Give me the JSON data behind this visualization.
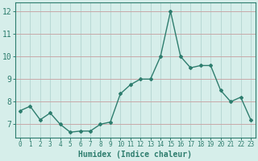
{
  "x": [
    0,
    1,
    2,
    3,
    4,
    5,
    6,
    7,
    8,
    9,
    10,
    11,
    12,
    13,
    14,
    15,
    16,
    17,
    18,
    19,
    20,
    21,
    22,
    23
  ],
  "y": [
    7.6,
    7.8,
    7.2,
    7.5,
    7.0,
    6.65,
    6.7,
    6.7,
    7.0,
    7.1,
    8.35,
    8.75,
    9.0,
    9.0,
    10.0,
    12.0,
    10.0,
    9.5,
    9.6,
    9.6,
    8.5,
    8.0,
    8.2,
    7.2
  ],
  "line_color": "#2e7d6e",
  "marker": "D",
  "marker_size": 2.0,
  "line_width": 1.0,
  "background_color": "#d6eeea",
  "grid_color_h": "#c8a8a8",
  "grid_color_v": "#b8d8d4",
  "xlabel": "Humidex (Indice chaleur)",
  "ylim": [
    6.4,
    12.4
  ],
  "xlim": [
    -0.5,
    23.5
  ],
  "yticks": [
    7,
    8,
    9,
    10,
    11,
    12
  ],
  "xticks": [
    0,
    1,
    2,
    3,
    4,
    5,
    6,
    7,
    8,
    9,
    10,
    11,
    12,
    13,
    14,
    15,
    16,
    17,
    18,
    19,
    20,
    21,
    22,
    23
  ],
  "tick_color": "#2e7d6e",
  "label_color": "#2e7d6e",
  "spine_color": "#2e7d6e",
  "xlabel_fontsize": 7,
  "ytick_fontsize": 7,
  "xtick_fontsize": 5.5
}
